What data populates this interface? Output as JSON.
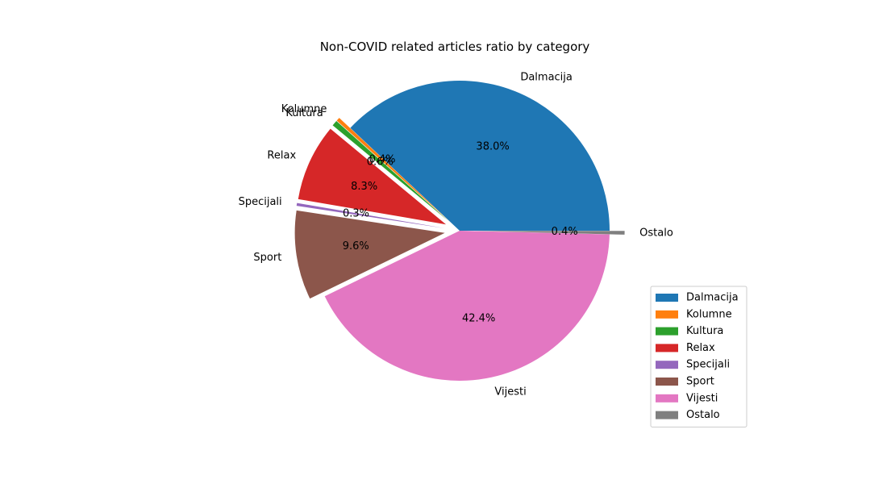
{
  "chart_data": {
    "type": "pie",
    "title": "Non-COVID related articles ratio by category",
    "legend_position": "lower-right",
    "slices": [
      {
        "label": "Dalmacija",
        "value": 38.0,
        "pct_label": "38.0%",
        "color": "#1f77b4",
        "exploded": false
      },
      {
        "label": "Kolumne",
        "value": 0.4,
        "pct_label": "0.4%",
        "color": "#ff7f0e",
        "exploded": true
      },
      {
        "label": "Kultura",
        "value": 0.6,
        "pct_label": "0.6%",
        "color": "#2ca02c",
        "exploded": true
      },
      {
        "label": "Relax",
        "value": 8.3,
        "pct_label": "8.3%",
        "color": "#d62728",
        "exploded": true
      },
      {
        "label": "Specijali",
        "value": 0.3,
        "pct_label": "0.3%",
        "color": "#9467bd",
        "exploded": true
      },
      {
        "label": "Sport",
        "value": 9.6,
        "pct_label": "9.6%",
        "color": "#8c564b",
        "exploded": true
      },
      {
        "label": "Vijesti",
        "value": 42.4,
        "pct_label": "42.4%",
        "color": "#e377c2",
        "exploded": false
      },
      {
        "label": "Ostalo",
        "value": 0.4,
        "pct_label": "0.4%",
        "color": "#7f7f7f",
        "exploded": true
      }
    ]
  }
}
